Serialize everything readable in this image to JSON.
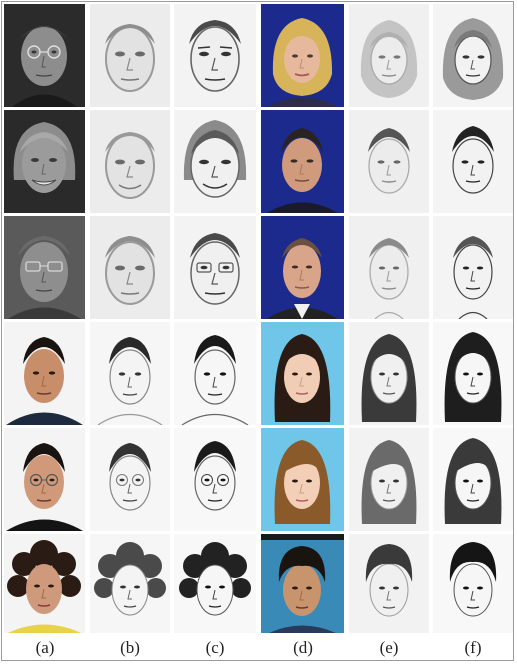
{
  "captions": [
    "(a)",
    "(b)",
    "(c)",
    "(d)",
    "(e)",
    "(f)"
  ],
  "colors": {
    "photo_gray_bg": "#2e2e2e",
    "photo_blue_bg": "#1b2a8c",
    "photo_lightblue_bg": "#6fc6e8",
    "photo_white_bg": "#f4f4f4",
    "sketch_bg": "#f2f2f2",
    "border": "#9a9a9a"
  },
  "icons": [
    "face-photo",
    "face-sketch"
  ]
}
